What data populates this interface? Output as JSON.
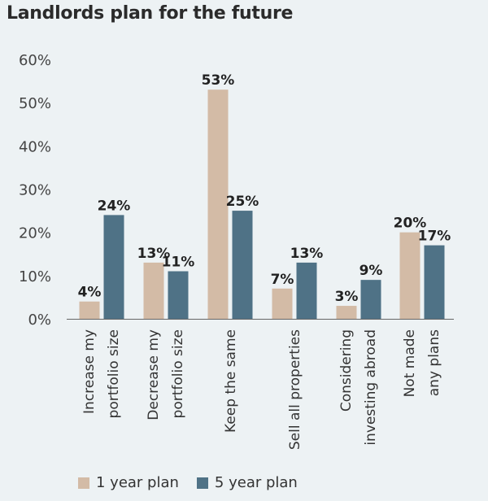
{
  "chart_data": {
    "type": "bar",
    "title": "Landlords plan for the future",
    "categories": [
      [
        "Increase my",
        "portfolio size"
      ],
      [
        "Decrease my",
        "portfolio size"
      ],
      [
        "Keep the same"
      ],
      [
        "Sell all properties"
      ],
      [
        "Considering",
        "investing abroad"
      ],
      [
        "Not made",
        "any plans"
      ]
    ],
    "series": [
      {
        "name": "1 year plan",
        "color": "#d3bba6",
        "values": [
          4,
          13,
          53,
          7,
          3,
          20
        ],
        "labels": [
          "4%",
          "13%",
          "53%",
          "7%",
          "3%",
          "20%"
        ]
      },
      {
        "name": "5 year plan",
        "color": "#4f7286",
        "values": [
          24,
          11,
          25,
          13,
          9,
          17
        ],
        "labels": [
          "24%",
          "11%",
          "25%",
          "13%",
          "9%",
          "17%"
        ]
      }
    ],
    "ylim": [
      0,
      60
    ],
    "yticks": [
      "0%",
      "10%",
      "20%",
      "30%",
      "40%",
      "50%",
      "60%"
    ],
    "xlabel": "",
    "ylabel": "",
    "grid": false,
    "legend_position": "bottom"
  }
}
